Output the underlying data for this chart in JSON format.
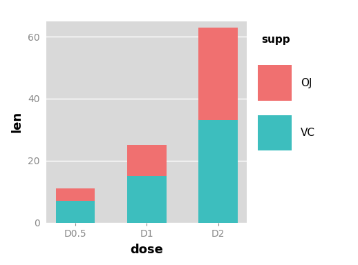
{
  "categories": [
    "D0.5",
    "D1",
    "D2"
  ],
  "vc_values": [
    7.0,
    15.0,
    33.0
  ],
  "oj_values": [
    4.0,
    10.0,
    30.0
  ],
  "color_vc": "#3DBEBE",
  "color_oj": "#F07070",
  "xlabel": "dose",
  "ylabel": "len",
  "legend_title": "supp",
  "legend_labels": [
    "OJ",
    "VC"
  ],
  "ylim": [
    0,
    65
  ],
  "yticks": [
    0,
    20,
    40,
    60
  ],
  "plot_bg_color": "#D9D9D9",
  "outer_bg_color": "#FFFFFF",
  "grid_color": "#FFFFFF",
  "tick_color": "#888888",
  "bar_width": 0.55
}
